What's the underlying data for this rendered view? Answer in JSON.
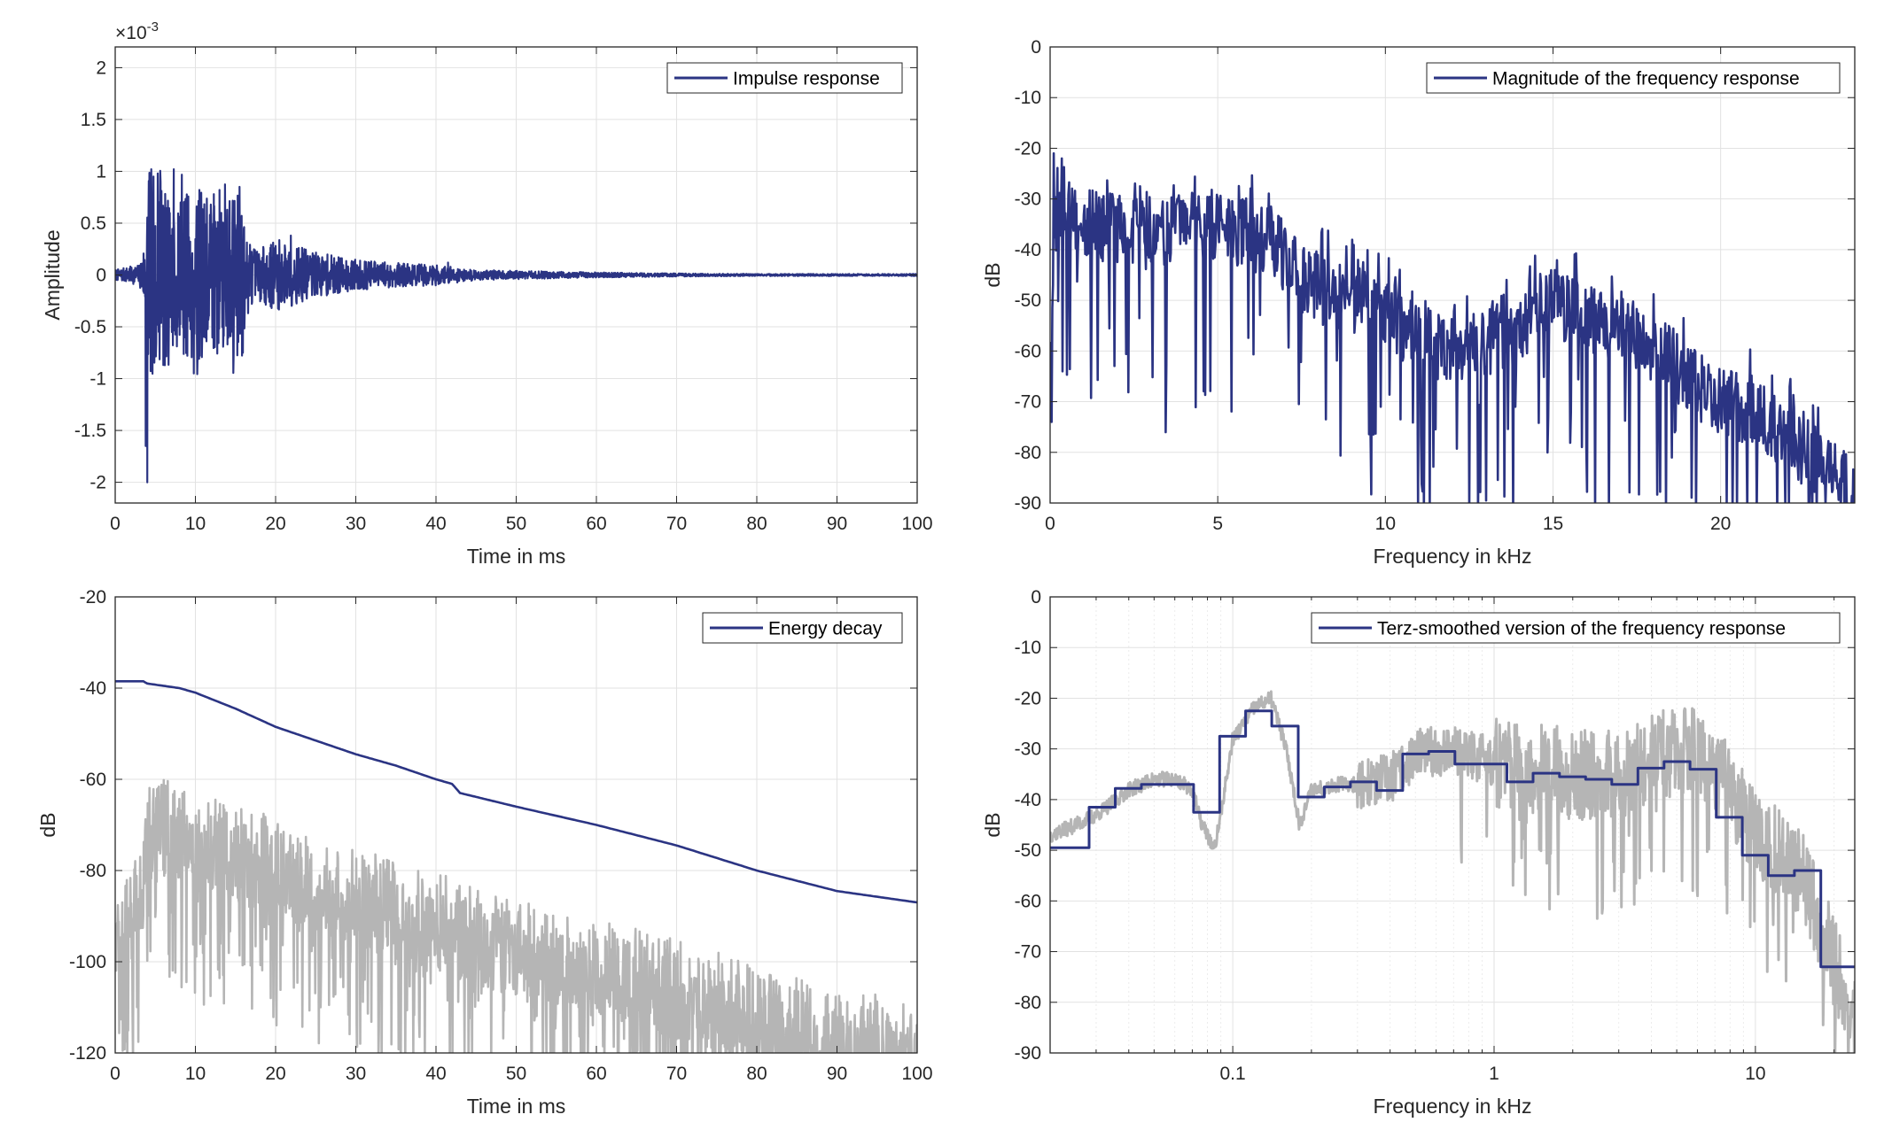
{
  "colors": {
    "primary": "#2b3483",
    "gray": "#b5b5b5",
    "grid": "#e2e2e2",
    "axis": "#262626"
  },
  "chart_data": [
    {
      "type": "line",
      "legend": "Impulse response",
      "legend_position": "top-right",
      "xlabel": "Time in ms",
      "ylabel": "Amplitude",
      "exponent_label": "×10",
      "exponent_sup": "-3",
      "xlim": [
        0,
        100
      ],
      "ylim": [
        -2.2,
        2.2
      ],
      "xticks": [
        0,
        10,
        20,
        30,
        40,
        50,
        60,
        70,
        80,
        90,
        100
      ],
      "xticklabels": [
        "0",
        "10",
        "20",
        "30",
        "40",
        "50",
        "60",
        "70",
        "80",
        "90",
        "100"
      ],
      "yticks": [
        -2,
        -1.5,
        -1,
        -0.5,
        0,
        0.5,
        1,
        1.5,
        2
      ],
      "yticklabels": [
        "-2",
        "-1.5",
        "-1",
        "-0.5",
        "0",
        "0.5",
        "1",
        "1.5",
        "2"
      ],
      "grid": true,
      "series": [
        {
          "name": "Impulse response",
          "color": "#2b3483",
          "envelope_x": [
            0,
            3,
            3.6,
            4.2,
            5,
            8,
            10,
            12,
            14,
            16,
            16.5,
            18,
            20,
            25,
            30,
            35,
            40,
            45,
            50,
            60,
            70,
            80,
            100
          ],
          "envelope_y": [
            0.05,
            0.1,
            0.3,
            1.0,
            0.95,
            0.8,
            0.85,
            0.7,
            0.75,
            0.85,
            0.3,
            0.25,
            0.35,
            0.22,
            0.15,
            0.12,
            0.1,
            0.05,
            0.04,
            0.025,
            0.015,
            0.01,
            0.01
          ],
          "peaks": [
            [
              3.8,
              -1.65
            ],
            [
              4.0,
              -2.0
            ],
            [
              4.5,
              1.02
            ],
            [
              5.3,
              0.98
            ],
            [
              7.3,
              1.02
            ],
            [
              9.8,
              -0.95
            ],
            [
              10.5,
              0.82
            ],
            [
              12.3,
              0.78
            ],
            [
              13.0,
              0.82
            ],
            [
              15.5,
              0.85
            ],
            [
              20.0,
              0.28
            ],
            [
              21.9,
              0.38
            ],
            [
              41.5,
              0.12
            ]
          ]
        }
      ]
    },
    {
      "type": "line",
      "legend": "Magnitude of the frequency response",
      "legend_position": "top-right",
      "xlabel": "Frequency in kHz",
      "ylabel": "dB",
      "xlim": [
        0,
        24
      ],
      "ylim": [
        -90,
        0
      ],
      "xticks": [
        0,
        5,
        10,
        15,
        20
      ],
      "xticklabels": [
        "0",
        "5",
        "10",
        "15",
        "20"
      ],
      "yticks": [
        0,
        -10,
        -20,
        -30,
        -40,
        -50,
        -60,
        -70,
        -80,
        -90
      ],
      "yticklabels": [
        "0",
        "-10",
        "-20",
        "-30",
        "-40",
        "-50",
        "-60",
        "-70",
        "-80",
        "-90"
      ],
      "grid": true,
      "series": [
        {
          "name": "Magnitude of the frequency response",
          "color": "#2b3483",
          "trend_x": [
            0,
            0.2,
            1,
            2,
            3,
            4,
            5,
            6,
            6.8,
            7.5,
            8.2,
            9,
            10,
            11,
            12,
            13,
            14,
            14.6,
            15.5,
            16.5,
            17.5,
            18.5,
            19.5,
            21,
            22,
            23,
            24
          ],
          "trend_y": [
            -55,
            -32,
            -35,
            -36,
            -37,
            -36,
            -35,
            -37,
            -40,
            -46,
            -48,
            -50,
            -52,
            -58,
            -60,
            -58,
            -57,
            -50,
            -52,
            -55,
            -58,
            -62,
            -68,
            -72,
            -77,
            -83,
            -88
          ]
        }
      ]
    },
    {
      "type": "line",
      "legend": "Energy decay",
      "legend_position": "top-right",
      "xlabel": "Time in ms",
      "ylabel": "dB",
      "xlim": [
        0,
        100
      ],
      "ylim": [
        -120,
        -20
      ],
      "xticks": [
        0,
        10,
        20,
        30,
        40,
        50,
        60,
        70,
        80,
        90,
        100
      ],
      "xticklabels": [
        "0",
        "10",
        "20",
        "30",
        "40",
        "50",
        "60",
        "70",
        "80",
        "90",
        "100"
      ],
      "yticks": [
        -20,
        -40,
        -60,
        -80,
        -100,
        -120
      ],
      "yticklabels": [
        "-20",
        "-40",
        "-60",
        "-80",
        "-100",
        "-120"
      ],
      "grid": true,
      "series": [
        {
          "name": "Energy decay",
          "color": "#2b3483",
          "x": [
            0,
            3.5,
            4,
            8,
            10,
            15,
            20,
            25,
            30,
            35,
            40,
            42,
            43,
            50,
            60,
            70,
            80,
            90,
            100
          ],
          "y": [
            -38.5,
            -38.5,
            -39,
            -40,
            -41,
            -44.5,
            -48.5,
            -51.5,
            -54.5,
            -57,
            -60,
            -61,
            -63,
            -66,
            -70,
            -74.5,
            -80,
            -84.5,
            -87
          ]
        },
        {
          "color": "#b5b5b5",
          "top_x": [
            0,
            3.5,
            4.2,
            10,
            20,
            30,
            40,
            50,
            60,
            70,
            80,
            90,
            100
          ],
          "top_y": [
            -85,
            -72,
            -58,
            -62,
            -68,
            -75,
            -80,
            -86,
            -90,
            -95,
            -100,
            -105,
            -109
          ]
        }
      ]
    },
    {
      "type": "line",
      "legend": "Terz-smoothed version of the frequency response",
      "legend_position": "top-right",
      "xlabel": "Frequency in kHz",
      "ylabel": "dB",
      "xscale": "log",
      "xlim": [
        0.02,
        24
      ],
      "ylim": [
        -90,
        0
      ],
      "xticks": [
        0.1,
        1,
        10
      ],
      "xticklabels": [
        "0.1",
        "1",
        "10"
      ],
      "yticks": [
        0,
        -10,
        -20,
        -30,
        -40,
        -50,
        -60,
        -70,
        -80,
        -90
      ],
      "yticklabels": [
        "0",
        "-10",
        "-20",
        "-30",
        "-40",
        "-50",
        "-60",
        "-70",
        "-80",
        "-90"
      ],
      "grid": true,
      "series": [
        {
          "name": "Terz-smoothed version of the frequency response",
          "color": "#2b3483",
          "step": true,
          "edges_khz": [
            0.02,
            0.0282,
            0.0355,
            0.0447,
            0.0562,
            0.0708,
            0.0891,
            0.112,
            0.141,
            0.178,
            0.224,
            0.282,
            0.355,
            0.447,
            0.562,
            0.708,
            0.891,
            1.12,
            1.41,
            1.78,
            2.24,
            2.82,
            3.55,
            4.47,
            5.62,
            7.08,
            8.91,
            11.2,
            14.1,
            17.8,
            24
          ],
          "values": [
            -49.5,
            -41.5,
            -37.8,
            -37,
            -37,
            -42.5,
            -27.5,
            -22.5,
            -25.5,
            -39.5,
            -37.5,
            -36.5,
            -38.2,
            -31,
            -30.5,
            -33,
            -33,
            -36.5,
            -34.8,
            -35.5,
            -36,
            -37,
            -33.8,
            -32.5,
            -34,
            -43.5,
            -51,
            -55,
            -54,
            -73
          ]
        },
        {
          "color": "#b5b5b5",
          "x": [
            0.02,
            0.03,
            0.04,
            0.05,
            0.06,
            0.07,
            0.075,
            0.085,
            0.1,
            0.12,
            0.14,
            0.16,
            0.18,
            0.2,
            0.25,
            0.3,
            0.4,
            0.5,
            0.7,
            1,
            1.5,
            2,
            3,
            4,
            5,
            6,
            7,
            8,
            10,
            12,
            15,
            20,
            24
          ],
          "y": [
            -47,
            -43,
            -38,
            -36,
            -36,
            -38,
            -44,
            -50,
            -28,
            -22,
            -20,
            -30,
            -45,
            -38,
            -37,
            -37,
            -36,
            -31,
            -30,
            -33,
            -34,
            -35,
            -35,
            -31,
            -31,
            -31,
            -34,
            -38,
            -46,
            -50,
            -55,
            -72,
            -84
          ]
        }
      ]
    }
  ]
}
